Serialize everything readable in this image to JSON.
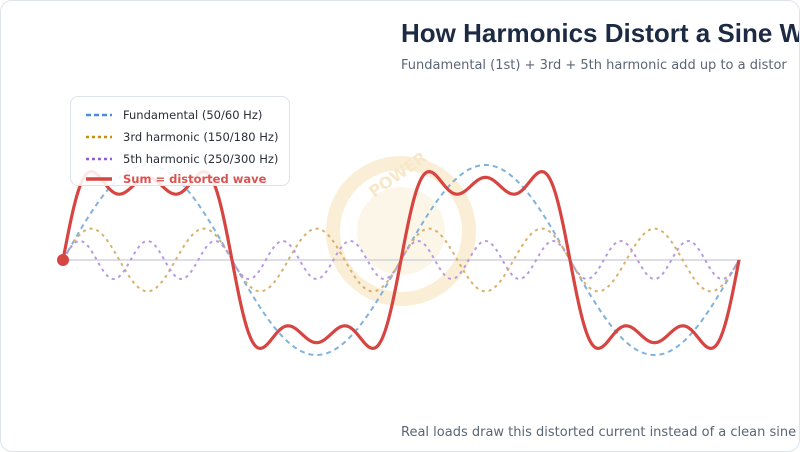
{
  "title": "How Harmonics Distort a Sine W",
  "subtitle": "Fundamental (1st) + 3rd + 5th harmonic add up to a distor",
  "footer": "Real loads draw this distorted current instead of a clean sine —",
  "watermark_text": "POWER",
  "colors": {
    "fundamental": "#7fb2dc",
    "third": "#d9b16a",
    "fifth": "#b79be0",
    "sum": "#d64541",
    "axis": "#c9ccd6",
    "watermark": "#f6e1b5"
  },
  "legend": [
    {
      "label": "Fundamental (50/60 Hz)",
      "series": "fundamental",
      "style": "dashed"
    },
    {
      "label": "3rd harmonic (150/180 Hz)",
      "series": "third",
      "style": "dotted"
    },
    {
      "label": "5th harmonic (250/300 Hz)",
      "series": "fifth",
      "style": "dotted"
    },
    {
      "label": "Sum = distorted wave",
      "series": "sum",
      "style": "solid"
    }
  ],
  "chart_data": {
    "type": "line",
    "x_range_cycles": [
      0,
      2
    ],
    "series": [
      {
        "key": "fundamental",
        "name": "Fundamental (50/60 Hz)",
        "harmonic": 1,
        "amplitude": 1.0
      },
      {
        "key": "third",
        "name": "3rd harmonic (150/180 Hz)",
        "harmonic": 3,
        "amplitude": 0.33
      },
      {
        "key": "fifth",
        "name": "5th harmonic (250/300 Hz)",
        "harmonic": 5,
        "amplitude": 0.2
      },
      {
        "key": "sum",
        "name": "Sum = distorted wave",
        "components": [
          1,
          3,
          5
        ]
      }
    ]
  }
}
